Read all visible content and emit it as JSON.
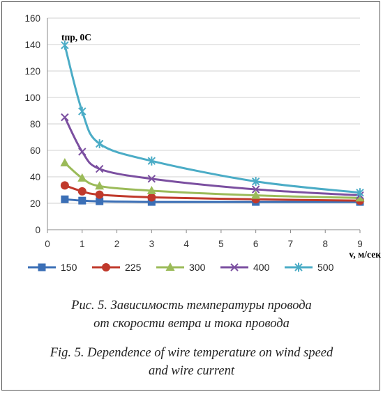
{
  "chart_data": {
    "type": "line",
    "ylabel": "tпр, 0С",
    "xlabel": "v, м/сек",
    "xlim": [
      0,
      9
    ],
    "ylim": [
      0,
      160
    ],
    "x_ticks": [
      0,
      1,
      2,
      3,
      4,
      5,
      6,
      7,
      8,
      9
    ],
    "y_ticks": [
      0,
      20,
      40,
      60,
      80,
      100,
      120,
      140,
      160
    ],
    "grid": "horizontal",
    "legend_position": "bottom",
    "series": [
      {
        "name": "150",
        "color": "#3b6fb6",
        "marker": "square",
        "x": [
          0.5,
          1,
          1.5,
          3,
          6,
          9
        ],
        "values": [
          23,
          22,
          21.5,
          21,
          21,
          21
        ]
      },
      {
        "name": "225",
        "color": "#c0392b",
        "marker": "circle",
        "x": [
          0.5,
          1,
          1.5,
          3,
          6,
          9
        ],
        "values": [
          33.5,
          29,
          26.5,
          24.5,
          23,
          22
        ]
      },
      {
        "name": "300",
        "color": "#9bbb59",
        "marker": "triangle",
        "x": [
          0.5,
          1,
          1.5,
          3,
          6,
          9
        ],
        "values": [
          50.5,
          39,
          33,
          29.5,
          26,
          24
        ]
      },
      {
        "name": "400",
        "color": "#7b4fa0",
        "marker": "x",
        "x": [
          0.5,
          1,
          1.5,
          3,
          6,
          9
        ],
        "values": [
          85,
          59,
          46,
          38.5,
          30.5,
          26
        ]
      },
      {
        "name": "500",
        "color": "#4bacc6",
        "marker": "star",
        "x": [
          0.5,
          1,
          1.5,
          3,
          6,
          9
        ],
        "values": [
          139.5,
          89.5,
          65,
          52,
          36.5,
          28
        ]
      }
    ]
  },
  "captions": {
    "ru_line1": "Рис. 5. Зависимость температуры провода",
    "ru_line2": "от скорости ветра и тока провода",
    "en_line1": "Fig. 5. Dependence of wire temperature on wind speed",
    "en_line2": "and wire current"
  }
}
